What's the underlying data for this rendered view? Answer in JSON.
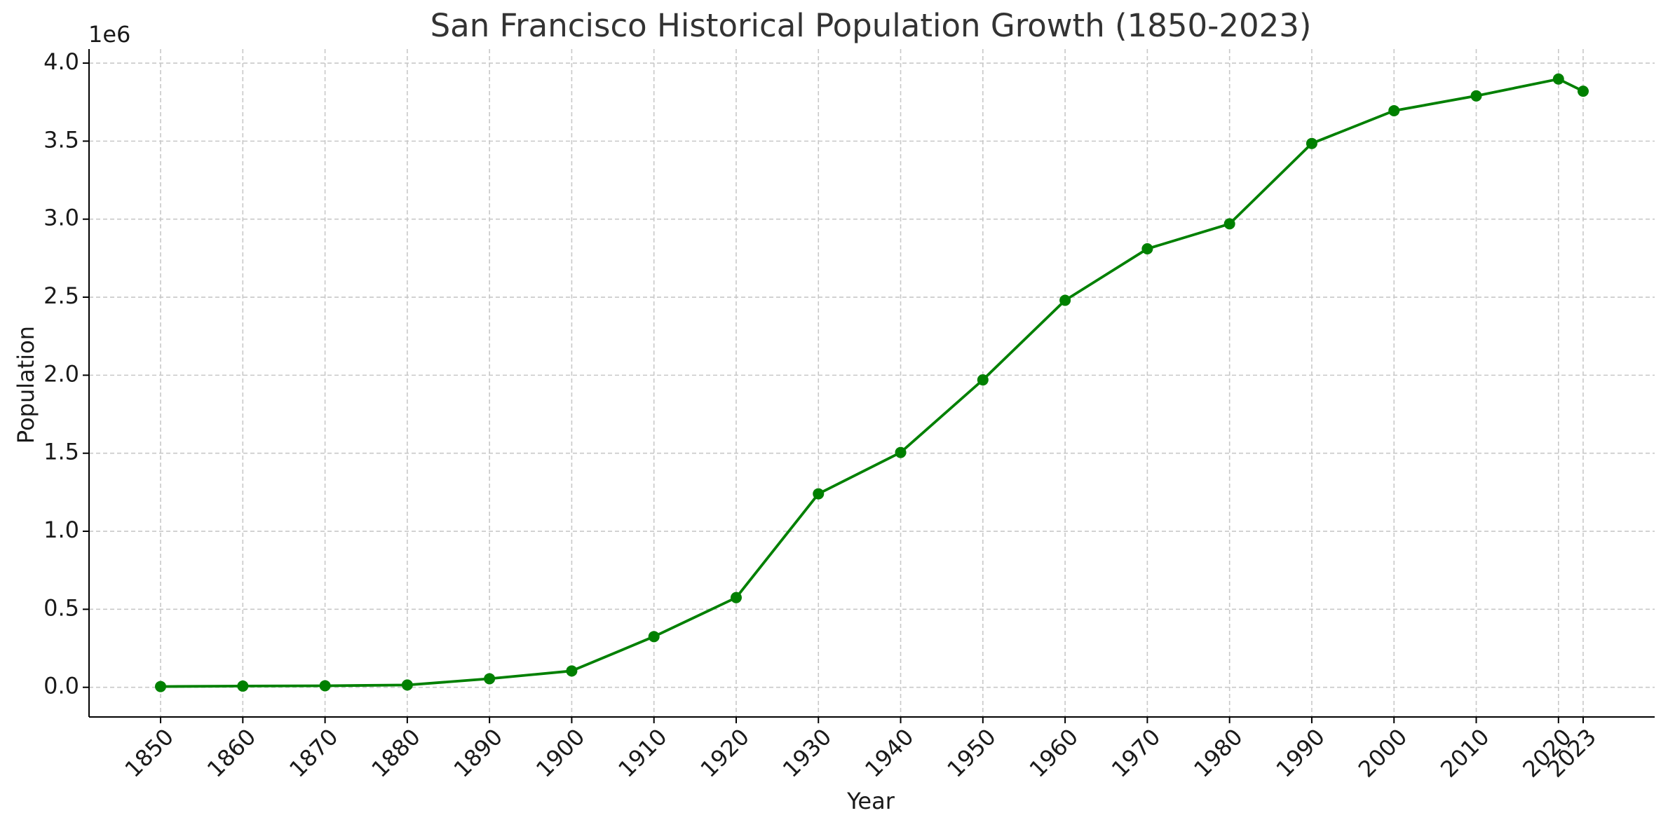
{
  "chart_data": {
    "type": "line",
    "title": "San Francisco Historical Population Growth (1850-2023)",
    "xlabel": "Year",
    "ylabel": "Population",
    "y_offset_label": "1e6",
    "y_tick_labels": [
      "0.0",
      "0.5",
      "1.0",
      "1.5",
      "2.0",
      "2.5",
      "3.0",
      "3.5",
      "4.0"
    ],
    "y_ticks": [
      0,
      500000,
      1000000,
      1500000,
      2000000,
      2500000,
      3000000,
      3500000,
      4000000
    ],
    "ylim": [
      -190000,
      4090000
    ],
    "x_ticks": [
      1850,
      1860,
      1870,
      1880,
      1890,
      1900,
      1910,
      1920,
      1930,
      1940,
      1950,
      1960,
      1970,
      1980,
      1990,
      2000,
      2010,
      2020,
      2023
    ],
    "x_tick_labels": [
      "1850",
      "1860",
      "1870",
      "1880",
      "1890",
      "1900",
      "1910",
      "1920",
      "1930",
      "1940",
      "1950",
      "1960",
      "1970",
      "1980",
      "1990",
      "2000",
      "2010",
      "2020",
      "2023"
    ],
    "xlim": [
      1841.3,
      2031.7
    ],
    "grid": true,
    "series": [
      {
        "color": "#008000",
        "marker": "circle",
        "x": [
          1850,
          1860,
          1870,
          1880,
          1890,
          1900,
          1910,
          1920,
          1930,
          1940,
          1950,
          1960,
          1970,
          1980,
          1990,
          2000,
          2010,
          2020,
          2023
        ],
        "values": [
          5000,
          8000,
          10000,
          15000,
          55000,
          105000,
          325000,
          575000,
          1240000,
          1505000,
          1970000,
          2480000,
          2810000,
          2970000,
          3485000,
          3695000,
          3790000,
          3898000,
          3820000
        ]
      }
    ]
  }
}
